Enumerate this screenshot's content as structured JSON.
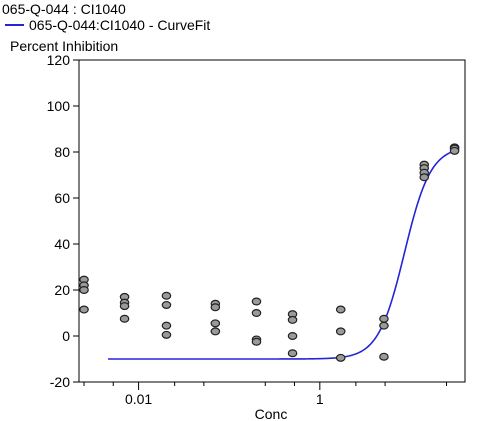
{
  "chart_data": {
    "type": "scatter",
    "title": "065-Q-044  : CI1040",
    "legend": [
      {
        "name": "065-Q-044:CI1040 - CurveFit",
        "color": "#2424d8",
        "placement": "top-left"
      }
    ],
    "xlabel": "Conc",
    "ylabel": "Percent Inhibition",
    "x_scale": "log",
    "xlim": [
      0.0022,
      40
    ],
    "ylim": [
      -20,
      120
    ],
    "y_ticks": [
      -20,
      0,
      20,
      40,
      60,
      80,
      100,
      120
    ],
    "x_major_ticks": [
      0.01,
      1
    ],
    "x_tick_labels": [
      "0.01",
      "1"
    ],
    "x_minor_ticks": [
      0.0025,
      0.00525,
      0.025,
      0.0525,
      0.25,
      0.525,
      2.5,
      5.25,
      25
    ],
    "grid": false,
    "series": [
      {
        "type": "scatter",
        "marker_color": "#9a9a9a",
        "points": [
          {
            "x": 0.0025,
            "y": 24.5
          },
          {
            "x": 0.0025,
            "y": 22.0
          },
          {
            "x": 0.0025,
            "y": 20.0
          },
          {
            "x": 0.0025,
            "y": 11.5
          },
          {
            "x": 0.007,
            "y": 17.0
          },
          {
            "x": 0.007,
            "y": 14.5
          },
          {
            "x": 0.007,
            "y": 13.0
          },
          {
            "x": 0.007,
            "y": 7.5
          },
          {
            "x": 0.0203,
            "y": 17.5
          },
          {
            "x": 0.0203,
            "y": 13.5
          },
          {
            "x": 0.0203,
            "y": 4.5
          },
          {
            "x": 0.0203,
            "y": 0.5
          },
          {
            "x": 0.0703,
            "y": 14.0
          },
          {
            "x": 0.0703,
            "y": 12.5
          },
          {
            "x": 0.0703,
            "y": 5.5
          },
          {
            "x": 0.0703,
            "y": 2.0
          },
          {
            "x": 0.2,
            "y": 15.0
          },
          {
            "x": 0.2,
            "y": 10.0
          },
          {
            "x": 0.2,
            "y": -1.5
          },
          {
            "x": 0.2,
            "y": -2.5
          },
          {
            "x": 0.5,
            "y": 9.5
          },
          {
            "x": 0.5,
            "y": 7.0
          },
          {
            "x": 0.5,
            "y": 0.0
          },
          {
            "x": 0.5,
            "y": -7.5
          },
          {
            "x": 1.7,
            "y": 11.5
          },
          {
            "x": 1.7,
            "y": 2.0
          },
          {
            "x": 1.7,
            "y": -9.5
          },
          {
            "x": 5.1,
            "y": 7.5
          },
          {
            "x": 5.1,
            "y": 4.5
          },
          {
            "x": 5.1,
            "y": -9.0
          },
          {
            "x": 14.2,
            "y": 74.5
          },
          {
            "x": 14.2,
            "y": 73.0
          },
          {
            "x": 14.2,
            "y": 71.0
          },
          {
            "x": 14.2,
            "y": 69.0
          },
          {
            "x": 30.7,
            "y": 82.0
          },
          {
            "x": 30.7,
            "y": 81.5
          },
          {
            "x": 30.7,
            "y": 80.5
          }
        ]
      },
      {
        "name": "065-Q-044:CI1040 - CurveFit",
        "type": "line",
        "color": "#2424d8",
        "fit": {
          "bottom": -10,
          "top": 82.5,
          "ec50": 8.6,
          "hill": 3.0
        },
        "x_range": [
          0.0046,
          32
        ]
      }
    ]
  }
}
